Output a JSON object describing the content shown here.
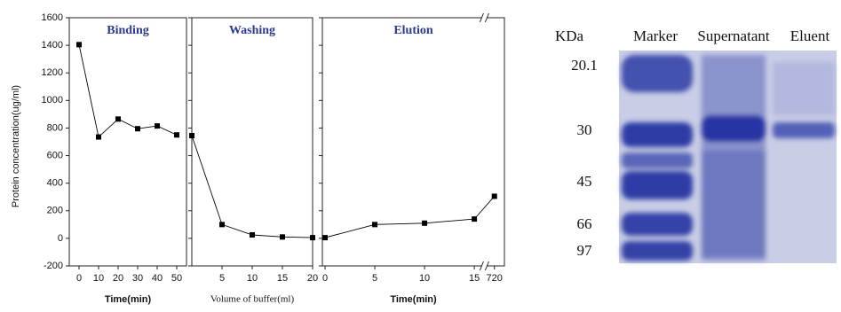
{
  "chart_data": [
    {
      "type": "line",
      "title": "Binding",
      "x_label": "Time(min)",
      "y_label": "Protein concentration(ug/ml)",
      "x": [
        0,
        10,
        20,
        30,
        40,
        50
      ],
      "values": [
        1405,
        735,
        865,
        795,
        815,
        750
      ],
      "color": "#000000",
      "xlim": [
        -5,
        55
      ],
      "xticks": [
        0,
        10,
        20,
        30,
        40,
        50
      ],
      "ylim": [
        -200,
        1600
      ],
      "yticks": [
        -200,
        0,
        200,
        400,
        600,
        800,
        1000,
        1200,
        1400,
        1600
      ],
      "ytick_labels": true
    },
    {
      "type": "line",
      "title": "Washing",
      "x_label": "Volume of buffer(ml)",
      "x": [
        0,
        5,
        10,
        15,
        20
      ],
      "values": [
        745,
        100,
        25,
        10,
        5
      ],
      "color": "#000000",
      "xlim": [
        0,
        20
      ],
      "xticks": [
        5,
        10,
        15,
        20
      ],
      "ylim": [
        -200,
        1600
      ],
      "yticks": [
        -200,
        0,
        200,
        400,
        600,
        800,
        1000,
        1200,
        1400,
        1600
      ],
      "ytick_labels": false
    },
    {
      "type": "line",
      "title": "Elution",
      "x_label": "Time(min)",
      "x": [
        0,
        5,
        10,
        15,
        720
      ],
      "values": [
        5,
        100,
        110,
        140,
        305
      ],
      "color": "#000000",
      "xlim": [
        0,
        720
      ],
      "xticks": [
        0,
        5,
        10,
        15,
        720
      ],
      "axis_break": true,
      "ylim": [
        -200,
        1600
      ],
      "yticks": [
        -200,
        0,
        200,
        400,
        600,
        800,
        1000,
        1200,
        1400,
        1600
      ],
      "ytick_labels": false
    }
  ],
  "gel": {
    "unit": "KDa",
    "lanes": [
      "Marker",
      "Supernatant",
      "Eluent"
    ],
    "markers": [
      20.1,
      30,
      45,
      66,
      97
    ]
  }
}
